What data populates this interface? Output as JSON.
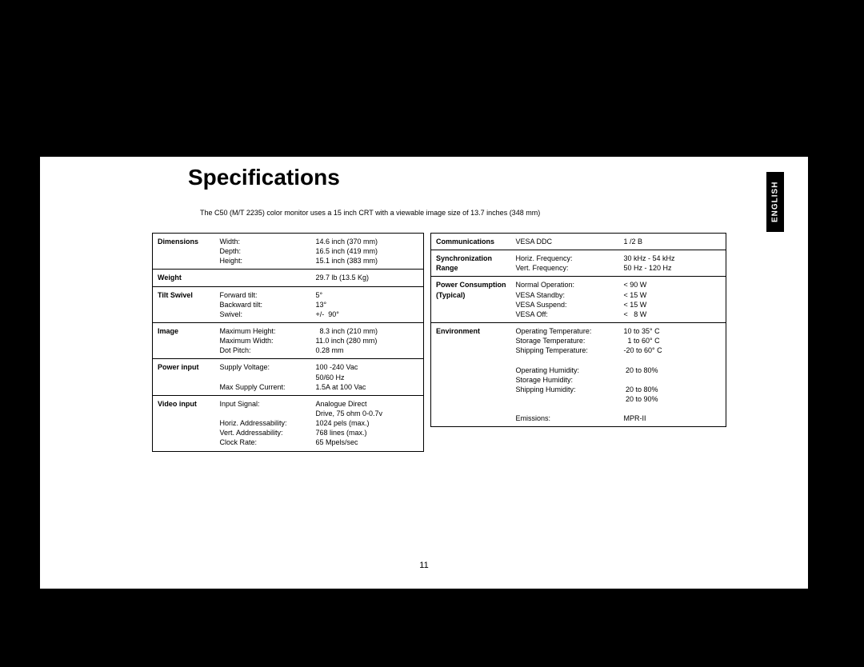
{
  "page": {
    "title": "Specifications",
    "subtitle": "The C50 (M/T 2235) color monitor uses a 15 inch CRT with a viewable image size of 13.7 inches (348 mm)",
    "language_tab": "ENGLISH",
    "page_number": "11",
    "colors": {
      "background": "#000000",
      "paper": "#ffffff",
      "text": "#000000"
    },
    "fonts": {
      "title_size_pt": 28,
      "body_size_pt": 9,
      "family": "Arial"
    },
    "left_table": [
      {
        "header": "Dimensions",
        "labels": "Width:\nDepth:\nHeight:",
        "values": "14.6 inch (370 mm)\n16.5 inch (419 mm)\n15.1 inch (383 mm)"
      },
      {
        "header": "Weight",
        "labels": "",
        "values": "29.7 lb (13.5 Kg)"
      },
      {
        "header": "Tilt Swivel",
        "labels": "Forward tilt:\nBackward tilt:\nSwivel:",
        "values": "5°\n13°\n+/-  90°"
      },
      {
        "header": "Image",
        "labels": "Maximum Height:\nMaximum Width:\nDot Pitch:",
        "values": "  8.3 inch (210 mm)\n11.0 inch (280 mm)\n0.28 mm"
      },
      {
        "header": "Power input",
        "labels": "Supply Voltage:\n\nMax Supply Current:",
        "values": "100 -240 Vac\n50/60 Hz\n1.5A at 100 Vac"
      },
      {
        "header": "Video input",
        "labels": "Input Signal:\n\nHoriz. Addressability:\nVert. Addressability:\nClock Rate:",
        "values": "Analogue Direct\nDrive, 75 ohm 0-0.7v\n1024 pels (max.)\n768 lines (max.)\n65 Mpels/sec"
      }
    ],
    "right_table": [
      {
        "header": "Communications",
        "labels": "VESA DDC",
        "values": "1 /2 B"
      },
      {
        "header": "Synchronization Range",
        "labels": "Horiz. Frequency:\nVert. Frequency:",
        "values": "30 kHz - 54 kHz\n50 Hz - 120 Hz"
      },
      {
        "header": "Power Consumption (Typical)",
        "labels": "Normal Operation:\nVESA Standby:\nVESA Suspend:\nVESA Off:",
        "values": "< 90 W\n< 15 W\n< 15 W\n<   8 W"
      },
      {
        "header": "Environment",
        "labels": "Operating Temperature:\nStorage Temperature:\nShipping Temperature:\n\nOperating Humidity:\nStorage Humidity:\nShipping Humidity:\n\n\nEmissions:",
        "values": "10 to 35° C\n  1 to 60° C\n-20 to 60° C\n\n 20 to 80%\n\n 20 to 80%\n 20 to 90%\n\nMPR-II"
      }
    ]
  }
}
